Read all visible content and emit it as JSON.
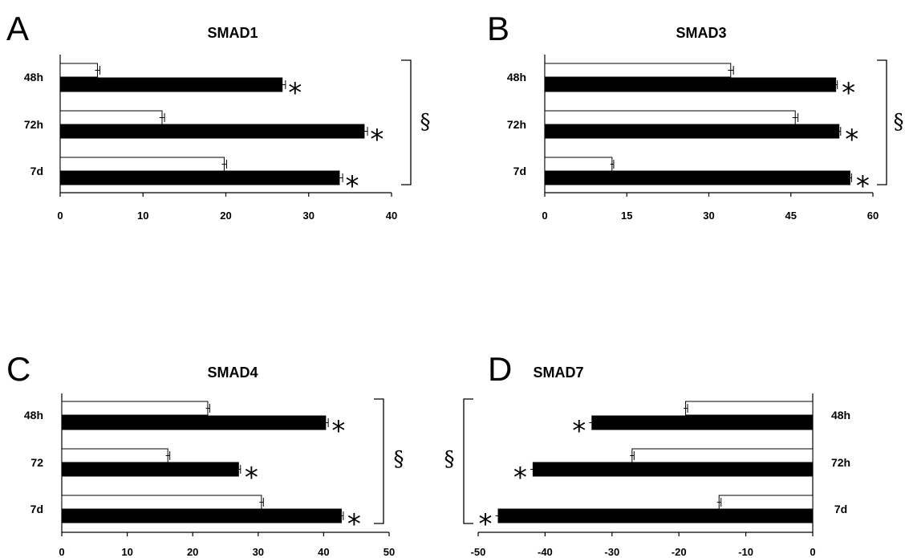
{
  "chart_data": [
    {
      "panel": "A",
      "title": "SMAD1",
      "type": "bar",
      "orientation": "horizontal",
      "categories": [
        "48h",
        "72h",
        "7d"
      ],
      "series": [
        {
          "color": "#ffffff",
          "values": [
            4.5,
            12.3,
            19.8
          ],
          "errors": [
            0.3,
            0.3,
            0.3
          ]
        },
        {
          "color": "#000000",
          "values": [
            26.8,
            36.7,
            33.7
          ],
          "errors": [
            0.4,
            0.4,
            0.4
          ]
        }
      ],
      "xlim": [
        0,
        40
      ],
      "xticks": [
        0,
        10,
        20,
        30,
        40
      ],
      "annotations": [
        "*",
        "*",
        "*"
      ],
      "bracket_label": "§",
      "bracket_side": "right",
      "legend": "none"
    },
    {
      "panel": "B",
      "title": "SMAD3",
      "type": "bar",
      "orientation": "horizontal",
      "categories": [
        "48h",
        "72h",
        "7d"
      ],
      "series": [
        {
          "color": "#ffffff",
          "values": [
            34,
            45.8,
            12.3
          ],
          "errors": [
            0.5,
            0.5,
            0.3
          ]
        },
        {
          "color": "#000000",
          "values": [
            53.2,
            53.8,
            55.8
          ],
          "errors": [
            0.3,
            0.3,
            0.3
          ]
        }
      ],
      "xlim": [
        0,
        60
      ],
      "xticks": [
        0,
        15,
        30,
        45,
        60
      ],
      "annotations": [
        "*",
        "*",
        "*"
      ],
      "bracket_label": "§",
      "bracket_side": "right",
      "legend": "none"
    },
    {
      "panel": "C",
      "title": "SMAD4",
      "type": "bar",
      "orientation": "horizontal",
      "categories": [
        "48h",
        "72",
        "7d"
      ],
      "series": [
        {
          "color": "#ffffff",
          "values": [
            22.3,
            16.2,
            30.5
          ],
          "errors": [
            0.3,
            0.3,
            0.3
          ]
        },
        {
          "color": "#000000",
          "values": [
            40.3,
            27,
            42.7
          ],
          "errors": [
            0.4,
            0.3,
            0.3
          ]
        }
      ],
      "xlim": [
        0,
        50
      ],
      "xticks": [
        0,
        10,
        20,
        30,
        40,
        50
      ],
      "annotations": [
        "*",
        "*",
        "*"
      ],
      "bracket_label": "§",
      "bracket_side": "right",
      "legend": "none"
    },
    {
      "panel": "D",
      "title": "SMAD7",
      "type": "bar",
      "orientation": "horizontal",
      "categories": [
        "48h",
        "72h",
        "7d"
      ],
      "series": [
        {
          "color": "#ffffff",
          "values": [
            -19,
            -27,
            -14
          ],
          "errors": [
            0.3,
            0.3,
            0.3
          ]
        },
        {
          "color": "#000000",
          "values": [
            -33,
            -41.8,
            -47
          ],
          "errors": [
            0.4,
            0.4,
            0.4
          ]
        }
      ],
      "xlim": [
        -50,
        0
      ],
      "xticks": [
        -50,
        -40,
        -30,
        -20,
        -10,
        0
      ],
      "annotations": [
        "*",
        "*",
        "*"
      ],
      "bracket_label": "§",
      "bracket_side": "left",
      "legend": "none"
    }
  ]
}
